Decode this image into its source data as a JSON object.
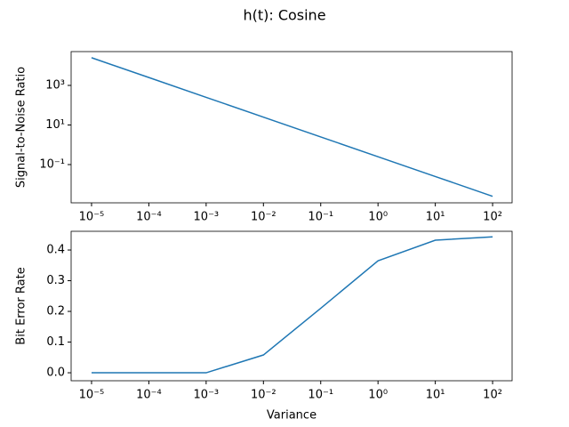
{
  "title": "h(t): Cosine",
  "chart_data": [
    {
      "type": "line",
      "ylabel": "Signal-to-Noise Ratio",
      "x": [
        1e-05,
        0.0001,
        0.001,
        0.01,
        0.1,
        1,
        10,
        100
      ],
      "series": [
        {
          "color": "#1f77b4",
          "values": [
            25000,
            2500,
            250,
            25,
            2.5,
            0.25,
            0.025,
            0.0025
          ]
        }
      ],
      "xscale": "log",
      "yscale": "log",
      "xlim": [
        4.4e-06,
        219
      ],
      "ylim": [
        0.00117,
        51000
      ],
      "xticks": [
        {
          "value": 1e-05,
          "label": "10⁻⁵"
        },
        {
          "value": 0.0001,
          "label": "10⁻⁴"
        },
        {
          "value": 0.001,
          "label": "10⁻³"
        },
        {
          "value": 0.01,
          "label": "10⁻²"
        },
        {
          "value": 0.1,
          "label": "10⁻¹"
        },
        {
          "value": 1,
          "label": "10⁰"
        },
        {
          "value": 10,
          "label": "10¹"
        },
        {
          "value": 100,
          "label": "10²"
        }
      ],
      "yticks": [
        {
          "value": 0.1,
          "label": "10⁻¹"
        },
        {
          "value": 10,
          "label": "10¹"
        },
        {
          "value": 1000,
          "label": "10³"
        }
      ]
    },
    {
      "type": "line",
      "xlabel": "Variance",
      "ylabel": "Bit Error Rate",
      "x": [
        1e-05,
        0.0001,
        0.001,
        0.01,
        0.1,
        1,
        10,
        100
      ],
      "series": [
        {
          "color": "#1f77b4",
          "values": [
            0,
            0,
            0,
            0.058,
            0.21,
            0.365,
            0.432,
            0.443
          ]
        }
      ],
      "xscale": "log",
      "yscale": "linear",
      "xlim": [
        4.4e-06,
        219
      ],
      "ylim": [
        -0.026,
        0.461
      ],
      "xticks": [
        {
          "value": 1e-05,
          "label": "10⁻⁵"
        },
        {
          "value": 0.0001,
          "label": "10⁻⁴"
        },
        {
          "value": 0.001,
          "label": "10⁻³"
        },
        {
          "value": 0.01,
          "label": "10⁻²"
        },
        {
          "value": 0.1,
          "label": "10⁻¹"
        },
        {
          "value": 1,
          "label": "10⁰"
        },
        {
          "value": 10,
          "label": "10¹"
        },
        {
          "value": 100,
          "label": "10²"
        }
      ],
      "yticks": [
        {
          "value": 0,
          "label": "0.0"
        },
        {
          "value": 0.1,
          "label": "0.1"
        },
        {
          "value": 0.2,
          "label": "0.2"
        },
        {
          "value": 0.3,
          "label": "0.3"
        },
        {
          "value": 0.4,
          "label": "0.4"
        }
      ]
    }
  ]
}
